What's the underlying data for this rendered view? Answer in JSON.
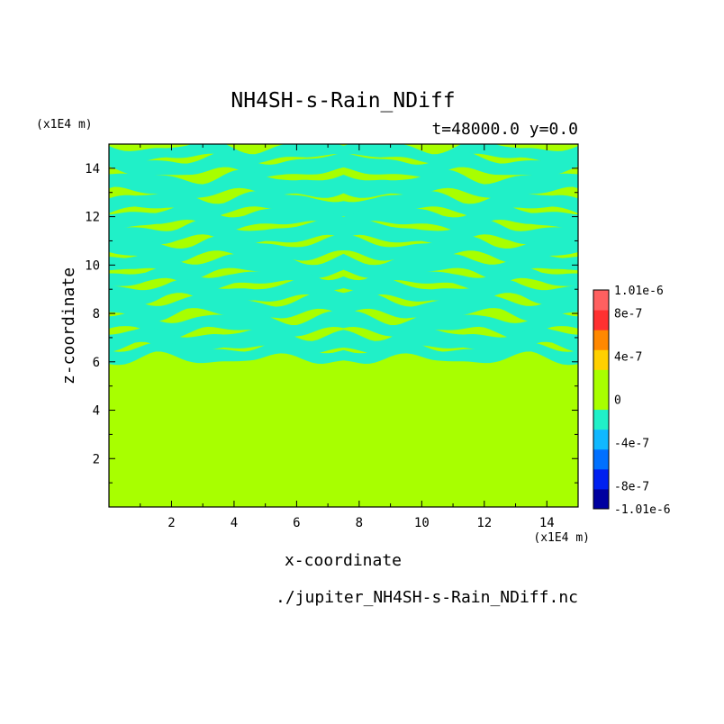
{
  "chart_data": {
    "type": "heatmap",
    "title": "NH4SH-s-Rain_NDiff",
    "subtitle": "t=48000.0 y=0.0",
    "xlabel": "x-coordinate",
    "ylabel": "z-coordinate",
    "x_unit": "(x1E4 m)",
    "y_unit": "(x1E4 m)",
    "footer": "./jupiter_NH4SH-s-Rain_NDiff.nc",
    "xlim": [
      0,
      15
    ],
    "ylim": [
      0,
      15
    ],
    "x_ticks": [
      2,
      4,
      6,
      8,
      10,
      12,
      14
    ],
    "y_ticks": [
      2,
      4,
      6,
      8,
      10,
      12,
      14
    ],
    "x_tick_labels": [
      "2",
      "4",
      "6",
      "8",
      "10",
      "12",
      "14"
    ],
    "y_tick_labels": [
      "2",
      "4",
      "6",
      "8",
      "10",
      "12",
      "14"
    ],
    "background_value": 0,
    "anomaly_value": -2e-07,
    "anomaly_band_z": [
      6.0,
      15.0
    ],
    "colorbar": {
      "min": -1.01e-06,
      "max": 1.01e-06,
      "label_values": [
        1.01e-06,
        8e-07,
        4e-07,
        0,
        -4e-07,
        -8e-07,
        -1.01e-06
      ],
      "labels": [
        "1.01e-6",
        "8e-7",
        "4e-7",
        "0",
        "-4e-7",
        "-8e-7",
        "-1.01e-6"
      ],
      "colors": [
        "#0000a0",
        "#0020f0",
        "#0070ff",
        "#10b8ff",
        "#20f0c8",
        "#a8ff00",
        "#a8ff00",
        "#ffd000",
        "#ff8800",
        "#ff3030",
        "#ff6060"
      ]
    },
    "bands": [
      {
        "z": 14.65,
        "thickness": 0.25
      },
      {
        "z": 14.1,
        "thickness": 0.3
      },
      {
        "z": 13.3,
        "thickness": 0.35
      },
      {
        "z": 12.55,
        "thickness": 0.3
      },
      {
        "z": 11.95,
        "thickness": 0.3
      },
      {
        "z": 11.3,
        "thickness": 0.3
      },
      {
        "z": 10.65,
        "thickness": 0.3
      },
      {
        "z": 10.0,
        "thickness": 0.3
      },
      {
        "z": 9.45,
        "thickness": 0.25
      },
      {
        "z": 8.85,
        "thickness": 0.3
      },
      {
        "z": 8.25,
        "thickness": 0.3
      },
      {
        "z": 7.55,
        "thickness": 0.3
      },
      {
        "z": 6.85,
        "thickness": 0.35
      },
      {
        "z": 6.35,
        "thickness": 0.25
      }
    ]
  }
}
